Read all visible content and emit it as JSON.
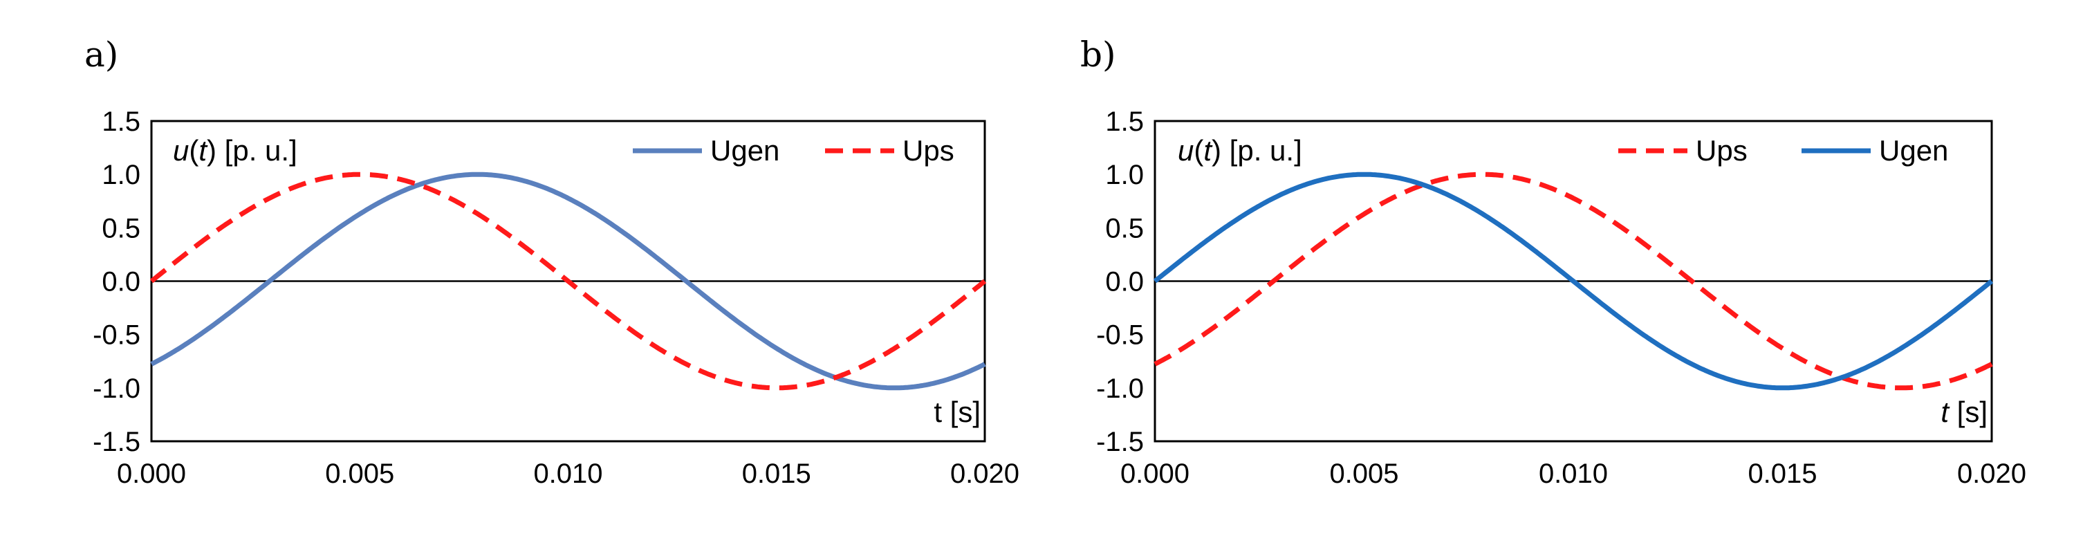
{
  "chart_data": [
    {
      "type": "line",
      "panel_label": "a)",
      "ylabel_prefix": "u(",
      "ylabel_var": "t",
      "ylabel_suffix": ") [p. u.]",
      "xlabel": "t [s]",
      "xlabel_italic_t": false,
      "xlim": [
        0,
        0.02
      ],
      "ylim": [
        -1.5,
        1.5
      ],
      "xticks": [
        "0.000",
        "0.005",
        "0.010",
        "0.015",
        "0.020"
      ],
      "yticks": [
        "1.5",
        "1.0",
        "0.5",
        "0.0",
        "-0.5",
        "-1.0",
        "-1.5"
      ],
      "legend_order": [
        "Ugen",
        "Ups"
      ],
      "series": [
        {
          "name": "Ugen",
          "style": "solid",
          "color": "#5a80be",
          "amplitude": 1.0,
          "frequency_hz": 50,
          "phase_deg": -51
        },
        {
          "name": "Ups",
          "style": "dashed",
          "color": "#ff1a1a",
          "amplitude": 1.0,
          "frequency_hz": 50,
          "phase_deg": 0
        }
      ]
    },
    {
      "type": "line",
      "panel_label": "b)",
      "ylabel_prefix": "u(",
      "ylabel_var": "t",
      "ylabel_suffix": ") [p. u.]",
      "xlabel": "t [s]",
      "xlabel_italic_t": true,
      "xlim": [
        0,
        0.02
      ],
      "ylim": [
        -1.5,
        1.5
      ],
      "xticks": [
        "0.000",
        "0.005",
        "0.010",
        "0.015",
        "0.020"
      ],
      "yticks": [
        "1.5",
        "1.0",
        "0.5",
        "0.0",
        "-0.5",
        "-1.0",
        "-1.5"
      ],
      "legend_order": [
        "Ups",
        "Ugen"
      ],
      "series": [
        {
          "name": "Ups",
          "style": "dashed",
          "color": "#ff1a1a",
          "amplitude": 1.0,
          "frequency_hz": 50,
          "phase_deg": -51
        },
        {
          "name": "Ugen",
          "style": "solid",
          "color": "#1f6fc0",
          "amplitude": 1.0,
          "frequency_hz": 50,
          "phase_deg": 0
        }
      ]
    }
  ]
}
